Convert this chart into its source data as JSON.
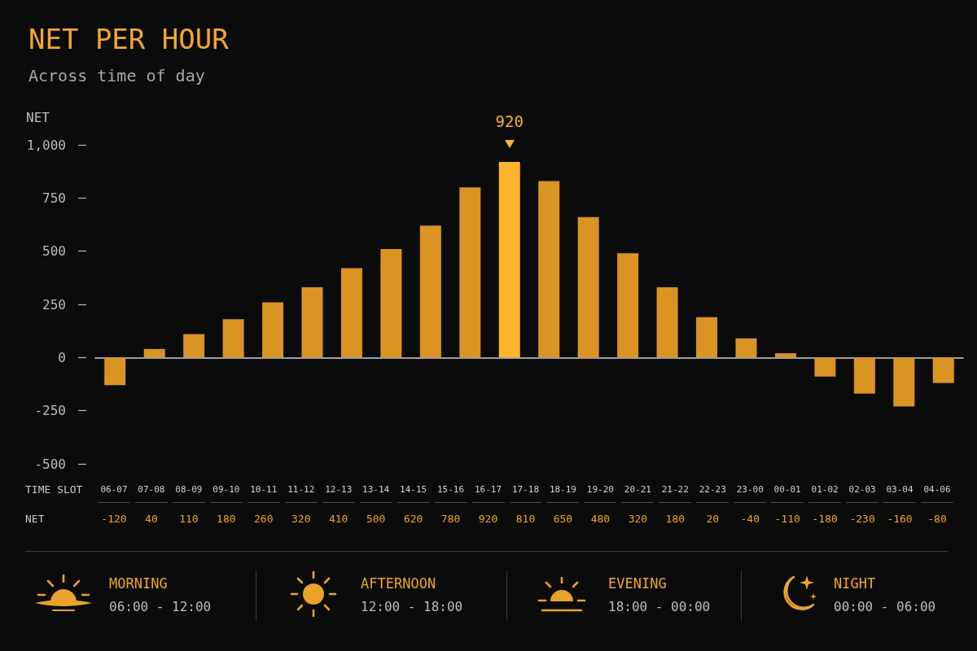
{
  "chart_data": [
    {
      "type": "bar",
      "title": "NET PER HOUR",
      "subtitle": "Across time of day",
      "ylabel": "NET",
      "tick_labels": "y",
      "categories": [
        null,
        null,
        null,
        null,
        null,
        null,
        null,
        null,
        null,
        null,
        null,
        null,
        null,
        null,
        null,
        null,
        null,
        null,
        null,
        null,
        null,
        null
      ],
      "values": [
        -130,
        40,
        110,
        180,
        260,
        330,
        420,
        510,
        620,
        800,
        920,
        830,
        660,
        490,
        330,
        190,
        90,
        20,
        -90,
        -170,
        -230,
        -120
      ],
      "colors": [
        "#da9424",
        "#da9424",
        "#da9424",
        "#da9424",
        "#da9424",
        "#da9424",
        "#da9424",
        "#da9424",
        "#da9424",
        "#da9424",
        "#fbb42c",
        "#da9424",
        "#da9424",
        "#da9424",
        "#da9424",
        "#da9424",
        "#da9424",
        "#da9424",
        "#da9424",
        "#da9424",
        "#da9424",
        "#da9424"
      ],
      "value_labels": [
        null,
        null,
        null,
        null,
        null,
        null,
        null,
        null,
        null,
        null,
        "920",
        null,
        null,
        null,
        null,
        null,
        null,
        null,
        null,
        null,
        null,
        null
      ],
      "ylim": [
        -500,
        1000
      ],
      "yticks": [
        -500,
        -250,
        0,
        250,
        500,
        750,
        {
          "value": 1000,
          "label": "1,000"
        }
      ]
    },
    {
      "type": "other",
      "xlabel": "TIME SLOT",
      "ylabel": "NET",
      "data_labels": true,
      "color": "#f2a52a",
      "categories": [
        "06-07",
        "07-08",
        "08-09",
        "09-10",
        "10-11",
        "11-12",
        "12-13",
        "13-14",
        "14-15",
        "15-16",
        "16-17",
        "17-18",
        "18-19",
        "19-20",
        "20-21",
        "21-22",
        "22-23",
        "23-00",
        "00-01",
        "01-02",
        "02-03",
        "03-04",
        "04-06"
      ],
      "values": [
        -120,
        40,
        110,
        180,
        260,
        320,
        410,
        500,
        620,
        780,
        920,
        810,
        650,
        480,
        320,
        180,
        20,
        -40,
        -110,
        -180,
        -230,
        -160,
        -80
      ]
    },
    {
      "type": "other",
      "annotations": [
        "MORNING",
        "06:00 - 12:00",
        "AFTERNOON",
        "12:00 - 18:00",
        "EVENING",
        "18:00 - 00:00",
        "NIGHT",
        "00:00 - 06:00"
      ]
    }
  ]
}
